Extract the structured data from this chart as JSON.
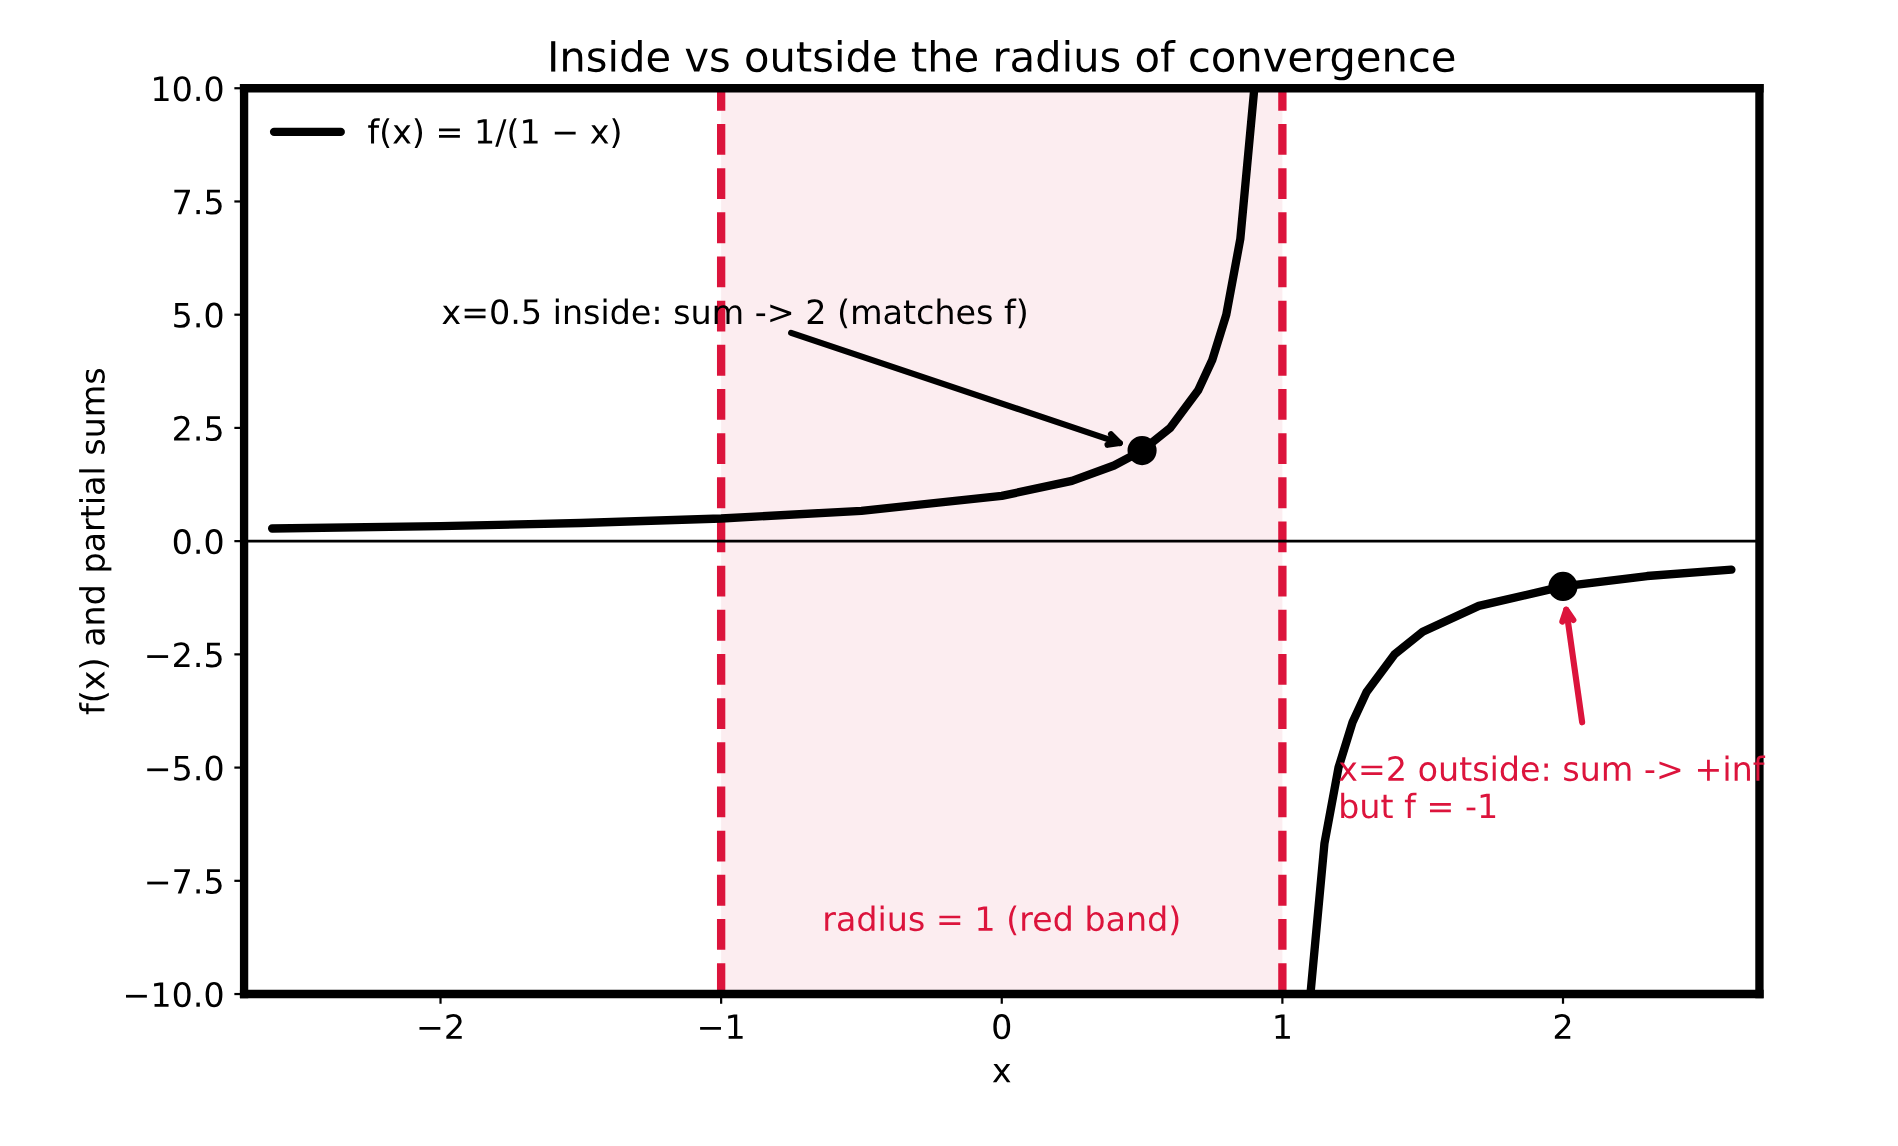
{
  "chart_data": {
    "type": "line",
    "title": "Inside vs outside the radius of convergence",
    "xlabel": "x",
    "ylabel": "f(x) and partial sums",
    "series": [
      {
        "name": "f(x) = 1/(1 − x)",
        "color": "#000000",
        "x": [
          -2.6,
          -2,
          -1.5,
          -1,
          -0.5,
          0,
          0.25,
          0.4,
          0.5,
          0.6,
          0.7,
          0.75,
          0.8,
          0.85,
          0.9,
          1.0,
          1.1,
          1.15,
          1.2,
          1.25,
          1.3,
          1.4,
          1.5,
          1.7,
          2,
          2.3,
          2.6
        ],
        "values": [
          0.28,
          0.33,
          0.4,
          0.5,
          0.67,
          1,
          1.33,
          1.67,
          2,
          2.5,
          3.33,
          4,
          5,
          6.67,
          10,
          null,
          -10,
          -6.67,
          -5,
          -4,
          -3.33,
          -2.5,
          -2,
          -1.43,
          -1,
          -0.77,
          -0.63
        ]
      },
      {
        "type": "scatter",
        "color": "#000000",
        "x": [
          0.5,
          2
        ],
        "values": [
          2,
          -1
        ]
      }
    ],
    "annotations": [
      "x=0.5 inside: sum -> 2 (matches f)",
      "x=2 outside: sum -> +inf\nbut f = -1"
    ],
    "ref_lines": [
      {
        "axis": "x",
        "value": -1,
        "color": "#dc143c",
        "line_style": "dashed"
      },
      {
        "axis": "x",
        "value": 1,
        "color": "#dc143c",
        "line_style": "dashed"
      },
      {
        "axis": "y",
        "value": 0,
        "color": "#000000",
        "line_style": "solid"
      }
    ],
    "bands": [
      {
        "axis": "x",
        "from": -1,
        "to": 1,
        "label": "radius = 1 (red band)",
        "color": "#dc143c"
      }
    ],
    "xlim": [
      -2.7,
      2.7
    ],
    "ylim": [
      -10,
      10
    ],
    "xticks": [
      {
        "value": -2,
        "label": "−2"
      },
      {
        "value": -1,
        "label": "−1"
      },
      0,
      1,
      2
    ],
    "yticks": [
      {
        "value": -10,
        "label": "−10.0"
      },
      {
        "value": -7.5,
        "label": "−7.5"
      },
      {
        "value": -5,
        "label": "−5.0"
      },
      {
        "value": -2.5,
        "label": "−2.5"
      },
      {
        "value": 0,
        "label": "0.0"
      },
      {
        "value": 2.5,
        "label": "2.5"
      },
      {
        "value": 5,
        "label": "5.0"
      },
      {
        "value": 7.5,
        "label": "7.5"
      },
      {
        "value": 10,
        "label": "10.0"
      }
    ],
    "grid": false,
    "legend": "top left",
    "line_style": "solid"
  }
}
